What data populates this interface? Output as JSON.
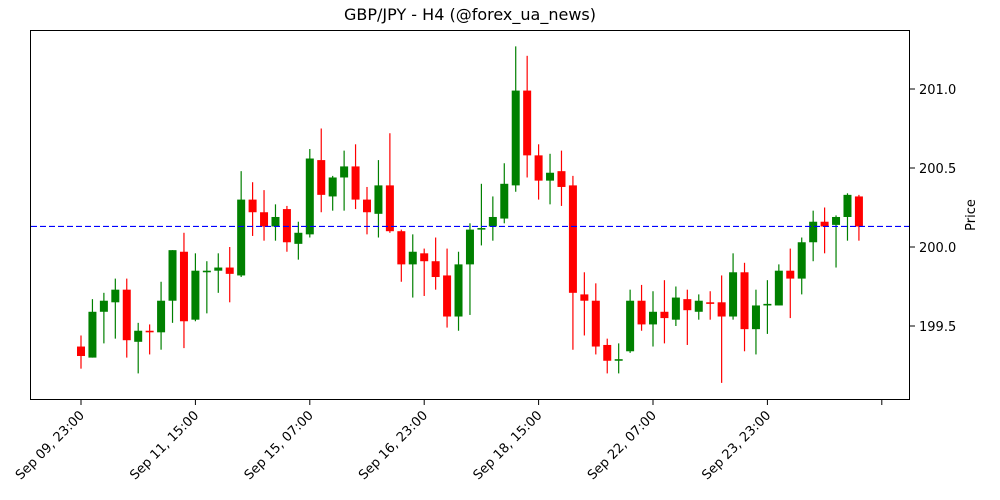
{
  "chart_data": {
    "type": "candlestick",
    "title": "GBP/JPY - H4 (@forex_ua_news)",
    "xlabel": "",
    "ylabel": "Price",
    "y_axis_side": "right",
    "ylim": [
      199.05,
      201.38
    ],
    "yticks": [
      199.5,
      200.0,
      200.5,
      201.0
    ],
    "ytick_labels": [
      "199.5",
      "200.0",
      "200.5",
      "201.0"
    ],
    "xtick_indices": [
      0,
      10,
      20,
      30,
      40,
      50,
      60,
      70
    ],
    "xtick_labels": [
      "Sep 09, 23:00",
      "Sep 11, 15:00",
      "Sep 15, 07:00",
      "Sep 16, 23:00",
      "Sep 18, 15:00",
      "Sep 22, 07:00",
      "Sep 23, 23:00",
      ""
    ],
    "grid": false,
    "reference_line": {
      "price": 200.13,
      "style": "dashed",
      "color": "#0000ff"
    },
    "colors": {
      "up": "#008000",
      "down": "#ff0000"
    },
    "candles": [
      {
        "o": 199.37,
        "h": 199.44,
        "l": 199.23,
        "c": 199.31
      },
      {
        "o": 199.3,
        "h": 199.67,
        "l": 199.3,
        "c": 199.59
      },
      {
        "o": 199.59,
        "h": 199.71,
        "l": 199.39,
        "c": 199.66
      },
      {
        "o": 199.65,
        "h": 199.8,
        "l": 199.42,
        "c": 199.73
      },
      {
        "o": 199.73,
        "h": 199.8,
        "l": 199.3,
        "c": 199.41
      },
      {
        "o": 199.4,
        "h": 199.52,
        "l": 199.2,
        "c": 199.47
      },
      {
        "o": 199.47,
        "h": 199.51,
        "l": 199.32,
        "c": 199.46
      },
      {
        "o": 199.46,
        "h": 199.78,
        "l": 199.35,
        "c": 199.66
      },
      {
        "o": 199.66,
        "h": 199.98,
        "l": 199.52,
        "c": 199.98
      },
      {
        "o": 199.97,
        "h": 200.09,
        "l": 199.36,
        "c": 199.53
      },
      {
        "o": 199.54,
        "h": 199.96,
        "l": 199.53,
        "c": 199.85
      },
      {
        "o": 199.84,
        "h": 199.91,
        "l": 199.58,
        "c": 199.85
      },
      {
        "o": 199.85,
        "h": 199.96,
        "l": 199.71,
        "c": 199.87
      },
      {
        "o": 199.87,
        "h": 200.0,
        "l": 199.65,
        "c": 199.83
      },
      {
        "o": 199.82,
        "h": 200.48,
        "l": 199.81,
        "c": 200.3
      },
      {
        "o": 200.3,
        "h": 200.41,
        "l": 200.07,
        "c": 200.22
      },
      {
        "o": 200.22,
        "h": 200.36,
        "l": 200.04,
        "c": 200.13
      },
      {
        "o": 200.13,
        "h": 200.27,
        "l": 200.04,
        "c": 200.19
      },
      {
        "o": 200.24,
        "h": 200.26,
        "l": 199.97,
        "c": 200.03
      },
      {
        "o": 200.02,
        "h": 200.16,
        "l": 199.92,
        "c": 200.09
      },
      {
        "o": 200.08,
        "h": 200.62,
        "l": 200.06,
        "c": 200.56
      },
      {
        "o": 200.55,
        "h": 200.75,
        "l": 200.22,
        "c": 200.33
      },
      {
        "o": 200.32,
        "h": 200.45,
        "l": 200.23,
        "c": 200.44
      },
      {
        "o": 200.44,
        "h": 200.61,
        "l": 200.23,
        "c": 200.51
      },
      {
        "o": 200.51,
        "h": 200.65,
        "l": 200.24,
        "c": 200.3
      },
      {
        "o": 200.3,
        "h": 200.38,
        "l": 200.08,
        "c": 200.22
      },
      {
        "o": 200.21,
        "h": 200.55,
        "l": 200.06,
        "c": 200.39
      },
      {
        "o": 200.39,
        "h": 200.72,
        "l": 200.09,
        "c": 200.1
      },
      {
        "o": 200.1,
        "h": 200.11,
        "l": 199.78,
        "c": 199.89
      },
      {
        "o": 199.89,
        "h": 200.08,
        "l": 199.68,
        "c": 199.97
      },
      {
        "o": 199.96,
        "h": 199.99,
        "l": 199.69,
        "c": 199.91
      },
      {
        "o": 199.91,
        "h": 200.06,
        "l": 199.73,
        "c": 199.81
      },
      {
        "o": 199.82,
        "h": 199.99,
        "l": 199.49,
        "c": 199.56
      },
      {
        "o": 199.56,
        "h": 199.97,
        "l": 199.47,
        "c": 199.89
      },
      {
        "o": 199.89,
        "h": 200.15,
        "l": 199.57,
        "c": 200.11
      },
      {
        "o": 200.11,
        "h": 200.4,
        "l": 200.01,
        "c": 200.12
      },
      {
        "o": 200.13,
        "h": 200.32,
        "l": 200.04,
        "c": 200.19
      },
      {
        "o": 200.18,
        "h": 200.53,
        "l": 200.15,
        "c": 200.4
      },
      {
        "o": 200.39,
        "h": 201.27,
        "l": 200.35,
        "c": 200.99
      },
      {
        "o": 200.99,
        "h": 201.21,
        "l": 200.44,
        "c": 200.58
      },
      {
        "o": 200.58,
        "h": 200.65,
        "l": 200.3,
        "c": 200.42
      },
      {
        "o": 200.42,
        "h": 200.59,
        "l": 200.27,
        "c": 200.47
      },
      {
        "o": 200.48,
        "h": 200.61,
        "l": 200.26,
        "c": 200.38
      },
      {
        "o": 200.39,
        "h": 200.45,
        "l": 199.35,
        "c": 199.71
      },
      {
        "o": 199.7,
        "h": 199.84,
        "l": 199.44,
        "c": 199.66
      },
      {
        "o": 199.66,
        "h": 199.77,
        "l": 199.32,
        "c": 199.37
      },
      {
        "o": 199.38,
        "h": 199.42,
        "l": 199.2,
        "c": 199.28
      },
      {
        "o": 199.28,
        "h": 199.39,
        "l": 199.2,
        "c": 199.29
      },
      {
        "o": 199.34,
        "h": 199.73,
        "l": 199.33,
        "c": 199.66
      },
      {
        "o": 199.66,
        "h": 199.76,
        "l": 199.47,
        "c": 199.51
      },
      {
        "o": 199.51,
        "h": 199.72,
        "l": 199.37,
        "c": 199.59
      },
      {
        "o": 199.59,
        "h": 199.79,
        "l": 199.39,
        "c": 199.55
      },
      {
        "o": 199.54,
        "h": 199.75,
        "l": 199.5,
        "c": 199.68
      },
      {
        "o": 199.67,
        "h": 199.73,
        "l": 199.38,
        "c": 199.6
      },
      {
        "o": 199.59,
        "h": 199.7,
        "l": 199.54,
        "c": 199.66
      },
      {
        "o": 199.65,
        "h": 199.72,
        "l": 199.54,
        "c": 199.64
      },
      {
        "o": 199.65,
        "h": 199.82,
        "l": 199.14,
        "c": 199.56
      },
      {
        "o": 199.56,
        "h": 199.96,
        "l": 199.54,
        "c": 199.84
      },
      {
        "o": 199.84,
        "h": 199.9,
        "l": 199.34,
        "c": 199.48
      },
      {
        "o": 199.48,
        "h": 199.73,
        "l": 199.32,
        "c": 199.63
      },
      {
        "o": 199.63,
        "h": 199.79,
        "l": 199.45,
        "c": 199.64
      },
      {
        "o": 199.63,
        "h": 199.89,
        "l": 199.63,
        "c": 199.85
      },
      {
        "o": 199.85,
        "h": 199.99,
        "l": 199.55,
        "c": 199.8
      },
      {
        "o": 199.8,
        "h": 200.06,
        "l": 199.7,
        "c": 200.03
      },
      {
        "o": 200.03,
        "h": 200.23,
        "l": 199.91,
        "c": 200.16
      },
      {
        "o": 200.16,
        "h": 200.25,
        "l": 199.96,
        "c": 200.13
      },
      {
        "o": 200.14,
        "h": 200.2,
        "l": 199.87,
        "c": 200.19
      },
      {
        "o": 200.19,
        "h": 200.34,
        "l": 200.04,
        "c": 200.33
      },
      {
        "o": 200.32,
        "h": 200.33,
        "l": 200.04,
        "c": 200.13
      }
    ]
  }
}
